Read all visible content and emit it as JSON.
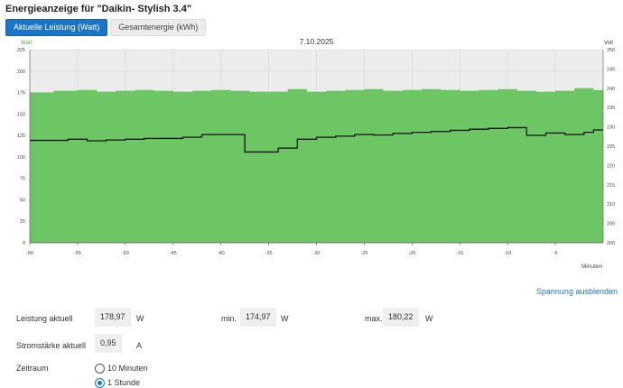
{
  "title": "Energieanzeige für \"Daikin- Stylish 3.4\"",
  "tabs": [
    {
      "label": "Aktuelle Leistung (Watt)",
      "active": true
    },
    {
      "label": "Gesamtenergie (kWh)",
      "active": false
    }
  ],
  "chart_data": {
    "type": "area",
    "title": "7.10.2025",
    "left_axis_label": "Watt",
    "right_axis_label": "Volt",
    "xlabel": "Minuten",
    "xlim": [
      -60,
      0
    ],
    "x_ticks": [
      -60,
      -55,
      -50,
      -45,
      -40,
      -35,
      -30,
      -25,
      -20,
      -15,
      -10,
      -5
    ],
    "ylim_left": [
      0,
      225
    ],
    "y_ticks_left": [
      0,
      25,
      50,
      75,
      100,
      125,
      150,
      175,
      200,
      225
    ],
    "ylim_right": [
      200,
      250
    ],
    "y_ticks_right": [
      200,
      205,
      210,
      215,
      220,
      225,
      230,
      235,
      240,
      245,
      250
    ],
    "series": [
      {
        "name": "Watt",
        "color": "#6cc664",
        "axis": "left",
        "x": [
          -60,
          -57.5,
          -55,
          -53,
          -51,
          -49,
          -47,
          -45,
          -43,
          -41,
          -39,
          -37,
          -35,
          -33,
          -31,
          -29,
          -27,
          -25,
          -23,
          -21,
          -19,
          -17,
          -15,
          -13,
          -11,
          -9,
          -7,
          -5,
          -3,
          -1,
          0
        ],
        "values": [
          175,
          177,
          178,
          176,
          177,
          178,
          177,
          176,
          177,
          178,
          177,
          176,
          176,
          179,
          176,
          177,
          178,
          179,
          177,
          178,
          179,
          178,
          177,
          178,
          179,
          177,
          176,
          177,
          180,
          178,
          178
        ]
      },
      {
        "name": "Volt",
        "color": "#111111",
        "axis": "right",
        "x": [
          -60,
          -58,
          -56,
          -54,
          -52,
          -50,
          -48,
          -46,
          -44,
          -42,
          -40,
          -38,
          -37.5,
          -36,
          -34,
          -32,
          -30,
          -28,
          -26,
          -24,
          -22,
          -20,
          -18,
          -16,
          -14,
          -12,
          -10,
          -8,
          -6,
          -4,
          -2,
          -1,
          0
        ],
        "values": [
          226.5,
          226.5,
          226.8,
          226.4,
          226.6,
          226.8,
          227,
          227,
          227.3,
          228,
          228,
          228,
          223.5,
          223.5,
          224.5,
          226.8,
          227.3,
          227.6,
          228,
          227.9,
          228.3,
          228.6,
          228.8,
          229.1,
          229.4,
          229.6,
          229.8,
          227.8,
          228.4,
          228,
          228.6,
          229.2,
          229.2
        ]
      }
    ],
    "plot_background": "#ececec",
    "grid": true
  },
  "toggle_voltage_link": "Spannung ausblenden",
  "stats": {
    "power_label": "Leistung aktuell",
    "power_value": "178,97",
    "power_unit": "W",
    "min_label": "min.",
    "min_value": "174,97",
    "min_unit": "W",
    "max_label": "max.",
    "max_value": "180,22",
    "max_unit": "W",
    "current_label": "Stromstärke aktuell",
    "current_value": "0,95",
    "current_unit": "A"
  },
  "period": {
    "label": "Zeitraum",
    "options": [
      {
        "label": "10 Minuten",
        "selected": false
      },
      {
        "label": "1 Stunde",
        "selected": true
      }
    ]
  }
}
